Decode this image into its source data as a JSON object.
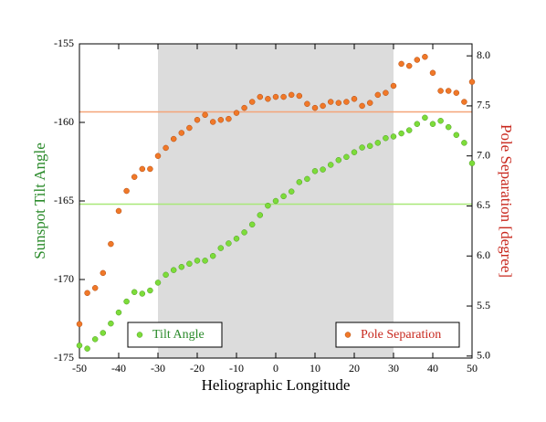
{
  "chart_data": {
    "type": "scatter",
    "xlabel": "Heliographic Longitude",
    "ylabel": "Sunspot Tilt Angle",
    "y2label": "Pole Separation [degree]",
    "xlim": [
      -50,
      50
    ],
    "xticks": [
      -50,
      -40,
      -30,
      -20,
      -10,
      0,
      10,
      20,
      30,
      40,
      50
    ],
    "ylim": [
      -175,
      -155
    ],
    "yticks": [
      -175,
      -170,
      -165,
      -160,
      -155
    ],
    "y2lim": [
      4.98,
      8.12
    ],
    "y2ticks": [
      {
        "value": 5,
        "label": "5.0"
      },
      5.5,
      {
        "value": 6,
        "label": "6.0"
      },
      6.5,
      {
        "value": 7,
        "label": "7.0"
      },
      7.5,
      {
        "value": 8,
        "label": "8.0"
      }
    ],
    "shaded_x": [
      -30,
      30
    ],
    "legend": "bottom",
    "series": [
      {
        "name": "Tilt Angle",
        "color": "#7ddc3a",
        "line_color": "#a8e878",
        "reference": -165.2,
        "x": [
          -50,
          -48,
          -46,
          -44,
          -42,
          -40,
          -38,
          -36,
          -34,
          -32,
          -30,
          -28,
          -26,
          -24,
          -22,
          -20,
          -18,
          -16,
          -14,
          -12,
          -10,
          -8,
          -6,
          -4,
          -2,
          0,
          2,
          4,
          6,
          8,
          10,
          12,
          14,
          16,
          18,
          20,
          22,
          24,
          26,
          28,
          30,
          32,
          34,
          36,
          38,
          40,
          42,
          44,
          46,
          48,
          50
        ],
        "values": [
          -174.2,
          -174.4,
          -173.8,
          -173.4,
          -172.8,
          -172.1,
          -171.4,
          -170.8,
          -170.9,
          -170.7,
          -170.2,
          -169.7,
          -169.4,
          -169.2,
          -169.0,
          -168.8,
          -168.8,
          -168.5,
          -168.0,
          -167.7,
          -167.4,
          -167.0,
          -166.5,
          -165.9,
          -165.3,
          -165.0,
          -164.7,
          -164.4,
          -163.8,
          -163.6,
          -163.1,
          -163.0,
          -162.7,
          -162.4,
          -162.2,
          -161.9,
          -161.6,
          -161.5,
          -161.3,
          -161.0,
          -160.9,
          -160.7,
          -160.5,
          -160.1,
          -159.7,
          -160.1,
          -159.9,
          -160.3,
          -160.8,
          -161.3,
          -162.6
        ]
      },
      {
        "name": "Pole Separation",
        "color": "#f07828",
        "line_color": "#f4a478",
        "reference": 7.44,
        "axis": "y2",
        "x": [
          -50,
          -48,
          -46,
          -44,
          -42,
          -40,
          -38,
          -36,
          -34,
          -32,
          -30,
          -28,
          -26,
          -24,
          -22,
          -20,
          -18,
          -16,
          -14,
          -12,
          -10,
          -8,
          -6,
          -4,
          -2,
          0,
          2,
          4,
          6,
          8,
          10,
          12,
          14,
          16,
          18,
          20,
          22,
          24,
          26,
          28,
          30,
          32,
          34,
          36,
          38,
          40,
          42,
          44,
          46,
          48,
          50
        ],
        "values": [
          5.32,
          5.63,
          5.68,
          5.83,
          6.12,
          6.45,
          6.65,
          6.79,
          6.87,
          6.87,
          7.0,
          7.08,
          7.17,
          7.23,
          7.28,
          7.36,
          7.41,
          7.34,
          7.36,
          7.37,
          7.43,
          7.48,
          7.54,
          7.59,
          7.57,
          7.59,
          7.59,
          7.61,
          7.6,
          7.52,
          7.48,
          7.5,
          7.54,
          7.53,
          7.54,
          7.57,
          7.5,
          7.53,
          7.61,
          7.63,
          7.7,
          7.92,
          7.9,
          7.96,
          7.99,
          7.83,
          7.65,
          7.65,
          7.63,
          7.54,
          7.74
        ]
      }
    ]
  }
}
